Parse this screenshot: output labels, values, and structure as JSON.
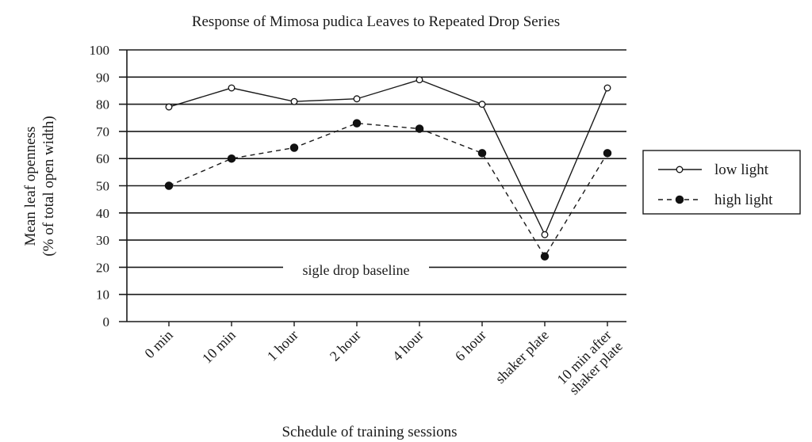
{
  "chart_data": {
    "type": "line",
    "title": "Response of Mimosa pudica Leaves to Repeated Drop Series",
    "xlabel": "Schedule of training sessions",
    "ylabel_line1": "Mean leaf openness",
    "ylabel_line2": "(% of total open width)",
    "ylim": [
      0,
      100
    ],
    "yticks": [
      "0",
      "10",
      "20",
      "30",
      "40",
      "50",
      "60",
      "70",
      "80",
      "90",
      "100"
    ],
    "categories": [
      [
        "0 min"
      ],
      [
        "10 min"
      ],
      [
        "1 hour"
      ],
      [
        "2 hour"
      ],
      [
        "4 hour"
      ],
      [
        "6 hour"
      ],
      [
        "shaker plate"
      ],
      [
        "10 min after",
        "shaker plate"
      ]
    ],
    "series": [
      {
        "name": "low light",
        "values": [
          79,
          86,
          81,
          82,
          89,
          80,
          32,
          86
        ],
        "marker": "open-circle",
        "line": "solid"
      },
      {
        "name": "high light",
        "values": [
          50,
          60,
          64,
          73,
          71,
          62,
          24,
          62
        ],
        "marker": "filled-circle",
        "line": "dashed"
      }
    ],
    "annotation": {
      "text": "sigle drop baseline",
      "value": 20
    },
    "grid": true,
    "legend_position": "right"
  }
}
